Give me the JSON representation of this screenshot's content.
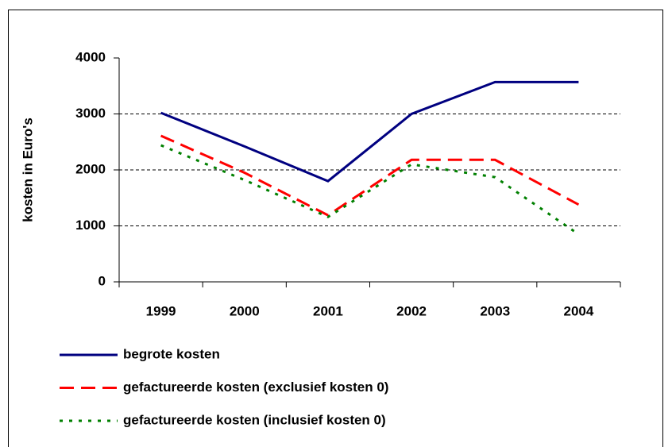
{
  "chart_data": {
    "type": "line",
    "y_label": "kosten in Euro's",
    "categories": [
      "1999",
      "2000",
      "2001",
      "2002",
      "2003",
      "2004"
    ],
    "series": [
      {
        "name": "begrote kosten",
        "color": "#000080",
        "style": "solid",
        "values": [
          3020,
          2420,
          1800,
          3000,
          3570,
          3570
        ]
      },
      {
        "name": "gefactureerde kosten (exclusief kosten 0)",
        "color": "#ff0000",
        "style": "dashed",
        "values": [
          2610,
          1950,
          1190,
          2180,
          2180,
          1380
        ]
      },
      {
        "name": "gefactureerde kosten (inclusief kosten 0)",
        "color": "#008000",
        "style": "dotted",
        "values": [
          2440,
          1820,
          1160,
          2100,
          1870,
          850
        ]
      }
    ],
    "ylim": [
      0,
      4000
    ],
    "yticks": [
      0,
      1000,
      2000,
      3000,
      4000
    ],
    "grid": true
  }
}
